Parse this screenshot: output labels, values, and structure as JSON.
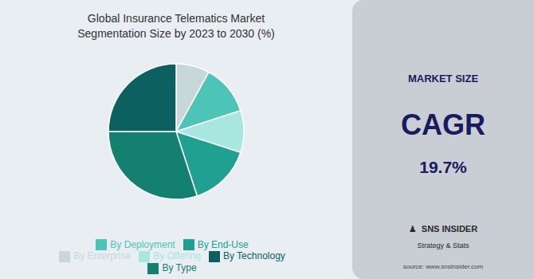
{
  "chart_data": {
    "type": "pie",
    "title": "Global Insurance Telematics Market\nSegmentation Size by 2023 to 2030 (%)",
    "categories": [
      "By Enterprise",
      "By Deployment",
      "By Offering",
      "By End-Use",
      "By Type",
      "By Technology"
    ],
    "values": [
      8,
      12,
      10,
      15,
      30,
      25
    ],
    "colors": [
      "#c8d8d8",
      "#4dc4b8",
      "#a8e6e0",
      "#20a090",
      "#148070",
      "#0d6060"
    ],
    "legend": "bottom",
    "annotations": [
      "MARKET SIZE",
      "CAGR",
      "19.7%",
      "♟  SNS INSIDER",
      "Strategy & Stats",
      "source: www.snsinsider.com"
    ]
  }
}
